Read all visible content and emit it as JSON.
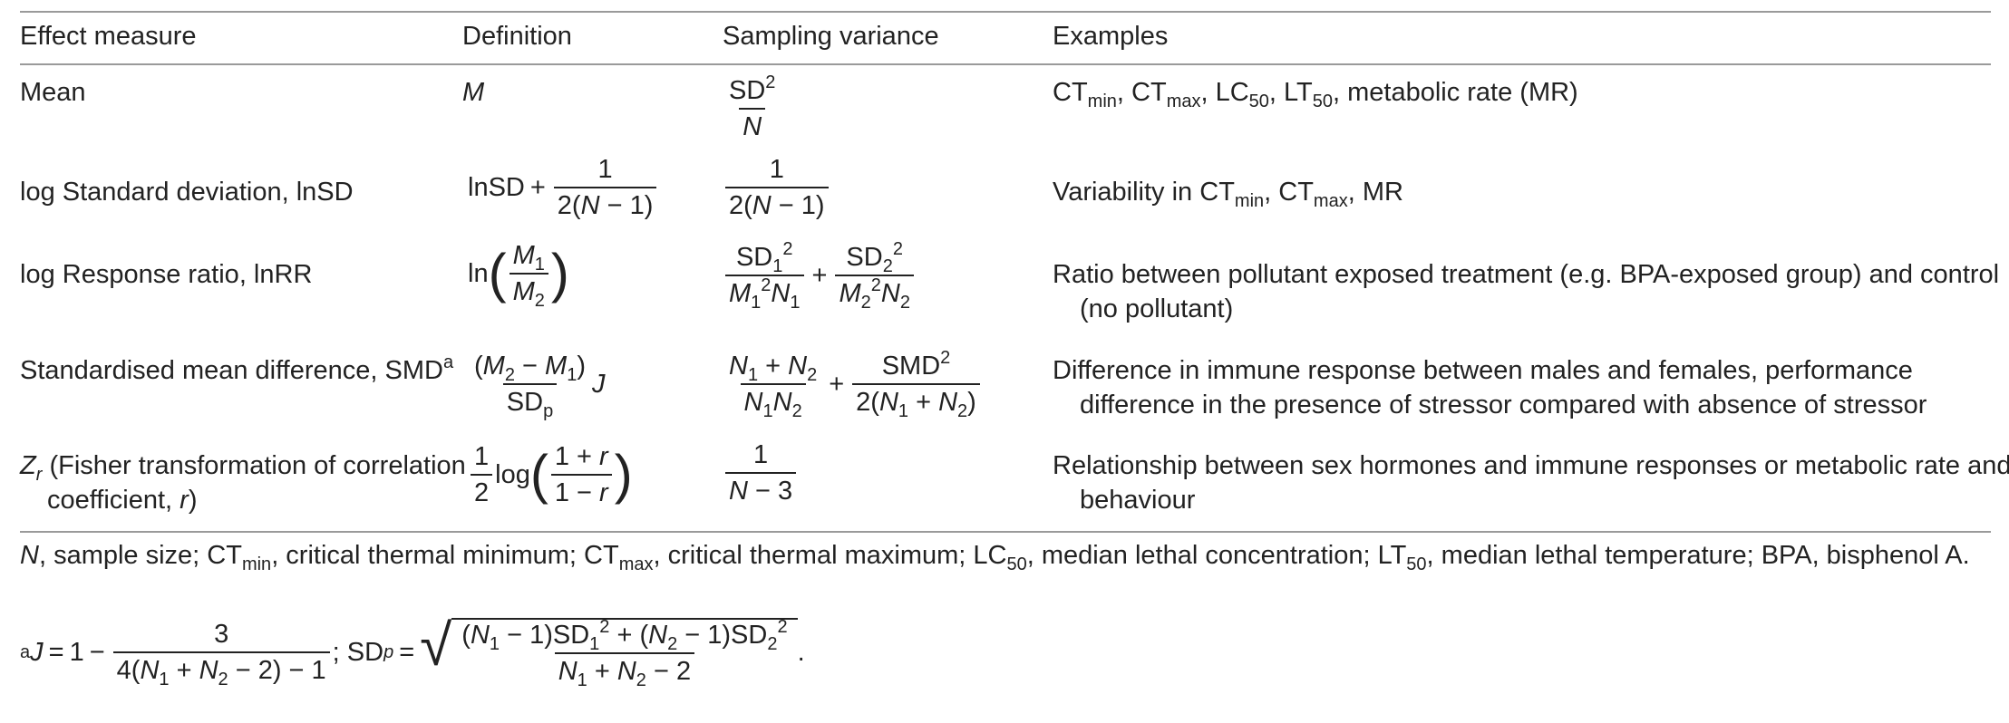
{
  "headers": {
    "effect": "Effect measure",
    "definition": "Definition",
    "variance": "Sampling variance",
    "examples": "Examples"
  },
  "rows": [
    {
      "effect": "Mean",
      "definition": "M",
      "variance": "SD²/N",
      "examples_parts": [
        "CT",
        "min",
        ", CT",
        "max",
        ", LC",
        "50",
        ", LT",
        "50",
        ", metabolic rate (MR)"
      ]
    },
    {
      "effect": "log Standard deviation, lnSD",
      "definition": "lnSD + 1/(2(N − 1))",
      "variance": "1/(2(N − 1))",
      "examples_parts": [
        "Variability in CT",
        "min",
        ", CT",
        "max",
        ", MR"
      ]
    },
    {
      "effect": "log Response ratio, lnRR",
      "definition": "ln(M1/M2)",
      "variance": "SD1²/(M1²N1) + SD2²/(M2²N2)",
      "examples": "Ratio between pollutant exposed treatment (e.g. BPA-exposed group) and control (no pollutant)"
    },
    {
      "effect": "Standardised mean difference, SMD",
      "effect_sup": "a",
      "definition": "((M2 − M1)/SDp) J",
      "variance": "(N1 + N2)/(N1N2) + SMD²/(2(N1 + N2))",
      "examples": "Difference in immune response between males and females, performance difference in the presence of stressor compared with absence of stressor"
    },
    {
      "effect_var": "Z",
      "effect_var_sub": "r",
      "effect": " (Fisher transformation of correlation coefficient, ",
      "effect_r": "r",
      "effect_close": ")",
      "definition": "(1/2) log((1 + r)/(1 − r))",
      "variance": "1/(N − 3)",
      "examples": "Relationship between sex hormones and immune responses or metabolic rate and behaviour"
    }
  ],
  "footnote": {
    "N": "N",
    "parts": [
      ", sample size; CT",
      "min",
      ", critical thermal minimum; CT",
      "max",
      ", critical thermal maximum; LC",
      "50",
      ", median lethal concentration; LT",
      "50",
      ", median lethal temperature; BPA, bisphenol A."
    ],
    "a_mark": "a",
    "a_formula": "J = 1 − 3/(4(N1 + N2 − 2) − 1); SDp = sqrt(((N1 − 1)SD1² + (N2 − 1)SD2²)/(N1 + N2 − 2))."
  }
}
